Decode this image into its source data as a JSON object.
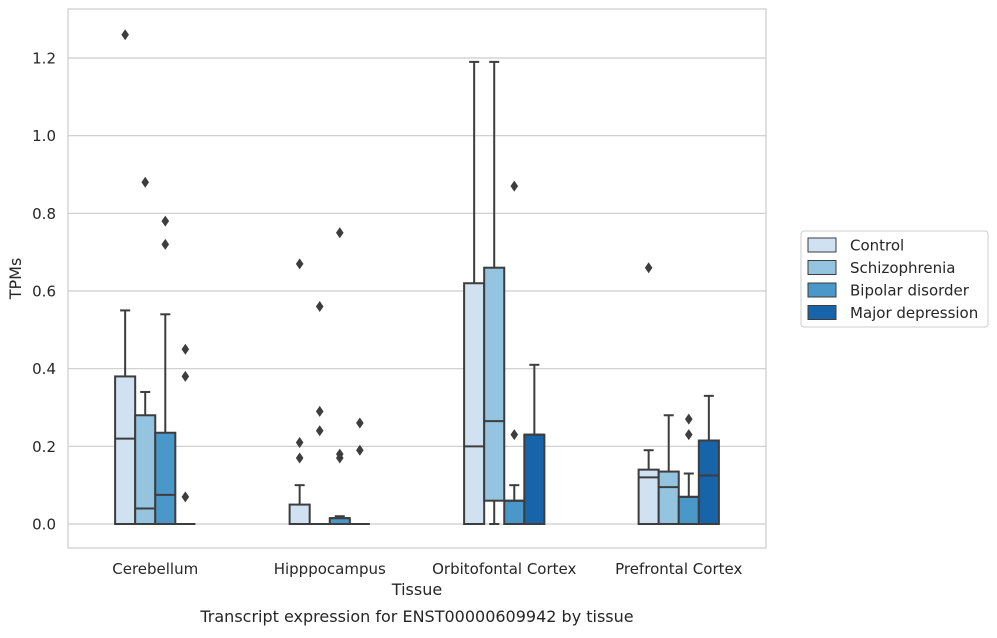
{
  "chart_data": {
    "type": "box",
    "title": "",
    "caption": "Transcript expression for ENST00000609942 by tissue",
    "xlabel": "Tissue",
    "ylabel": "TPMs",
    "ylim": [
      -0.06,
      1.32
    ],
    "yticks": [
      "0.0",
      "0.2",
      "0.4",
      "0.6",
      "0.8",
      "1.0",
      "1.2"
    ],
    "ytick_values": [
      0,
      0.2,
      0.4,
      0.6,
      0.8,
      1.0,
      1.2
    ],
    "grid": "horizontal",
    "legend_position": "right",
    "categories": [
      "Cerebellum",
      "Hipppocampus",
      "Orbitofontal Cortex",
      "Prefrontal Cortex"
    ],
    "series": [
      {
        "name": "Control",
        "color": "#d0e1f2",
        "boxes": [
          {
            "q1": 0,
            "median": 0.22,
            "q3": 0.38,
            "whisker_low": 0,
            "whisker_high": 0.55,
            "outliers": [
              1.26
            ]
          },
          {
            "q1": 0,
            "median": 0,
            "q3": 0.05,
            "whisker_low": 0,
            "whisker_high": 0.1,
            "outliers": [
              0.17,
              0.21,
              0.67
            ]
          },
          {
            "q1": 0,
            "median": 0.2,
            "q3": 0.62,
            "whisker_low": 0,
            "whisker_high": 1.19,
            "outliers": []
          },
          {
            "q1": 0,
            "median": 0.12,
            "q3": 0.14,
            "whisker_low": 0,
            "whisker_high": 0.19,
            "outliers": [
              0.66
            ]
          }
        ]
      },
      {
        "name": "Schizophrenia",
        "color": "#94c4df",
        "boxes": [
          {
            "q1": 0,
            "median": 0.04,
            "q3": 0.28,
            "whisker_low": 0,
            "whisker_high": 0.34,
            "outliers": [
              0.88
            ]
          },
          {
            "q1": 0,
            "median": 0,
            "q3": 0,
            "whisker_low": 0,
            "whisker_high": 0,
            "outliers": [
              0.24,
              0.29,
              0.56
            ]
          },
          {
            "q1": 0.06,
            "median": 0.265,
            "q3": 0.66,
            "whisker_low": 0,
            "whisker_high": 1.19,
            "outliers": []
          },
          {
            "q1": 0,
            "median": 0.095,
            "q3": 0.135,
            "whisker_low": 0,
            "whisker_high": 0.28,
            "outliers": []
          }
        ]
      },
      {
        "name": "Bipolar disorder",
        "color": "#4a98c9",
        "boxes": [
          {
            "q1": 0,
            "median": 0.075,
            "q3": 0.235,
            "whisker_low": 0,
            "whisker_high": 0.54,
            "outliers": [
              0.72,
              0.78
            ]
          },
          {
            "q1": 0,
            "median": 0.015,
            "q3": 0.015,
            "whisker_low": 0,
            "whisker_high": 0.02,
            "outliers": [
              0.17,
              0.18,
              0.75
            ]
          },
          {
            "q1": 0,
            "median": 0.06,
            "q3": 0.06,
            "whisker_low": 0,
            "whisker_high": 0.1,
            "outliers": [
              0.23,
              0.87
            ]
          },
          {
            "q1": 0,
            "median": 0.07,
            "q3": 0.07,
            "whisker_low": 0,
            "whisker_high": 0.13,
            "outliers": [
              0.23,
              0.27
            ]
          }
        ]
      },
      {
        "name": "Major depression",
        "color": "#1764ab",
        "boxes": [
          {
            "q1": 0,
            "median": 0,
            "q3": 0,
            "whisker_low": 0,
            "whisker_high": 0,
            "outliers": [
              0.07,
              0.38,
              0.45
            ]
          },
          {
            "q1": 0,
            "median": 0,
            "q3": 0,
            "whisker_low": 0,
            "whisker_high": 0,
            "outliers": [
              0.19,
              0.26
            ]
          },
          {
            "q1": 0,
            "median": 0.23,
            "q3": 0.23,
            "whisker_low": 0,
            "whisker_high": 0.41,
            "outliers": []
          },
          {
            "q1": 0,
            "median": 0.125,
            "q3": 0.215,
            "whisker_low": 0,
            "whisker_high": 0.33,
            "outliers": []
          }
        ]
      }
    ]
  }
}
